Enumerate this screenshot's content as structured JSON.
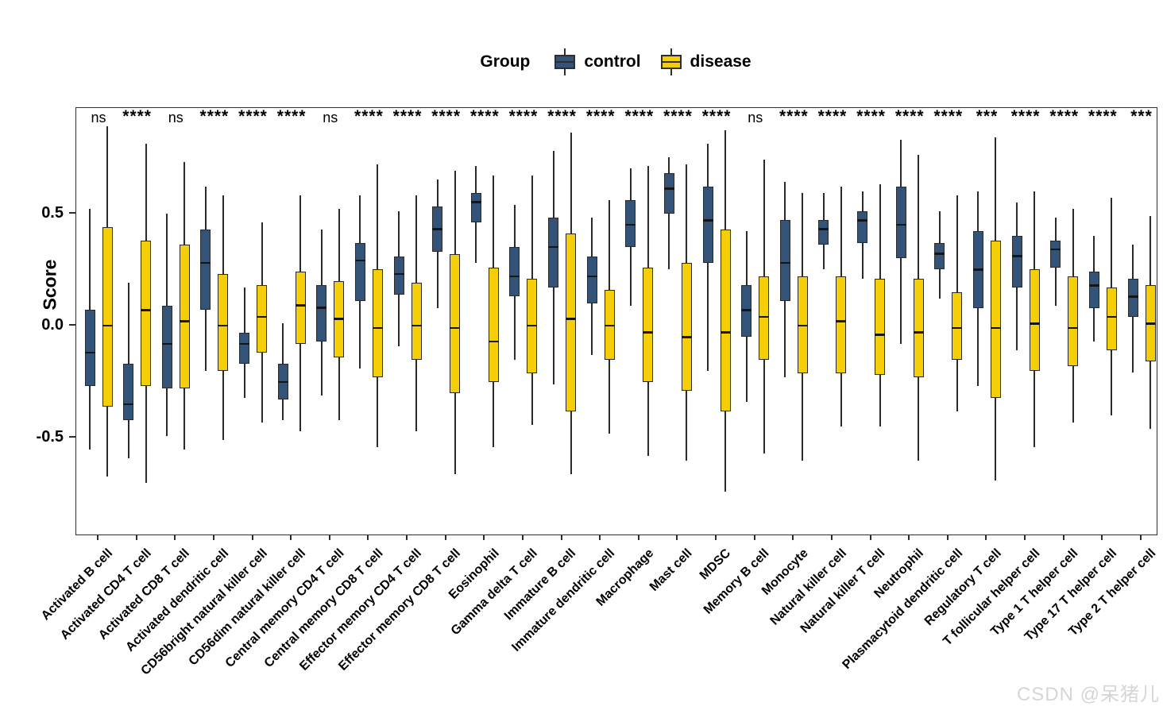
{
  "legend": {
    "title": "Group",
    "items": [
      {
        "label": "control",
        "color": "#345379"
      },
      {
        "label": "disease",
        "color": "#F5CE0A"
      }
    ]
  },
  "watermark": "CSDN @呆猪儿",
  "chart_data": {
    "type": "boxplot",
    "orientation": "vertical",
    "title": "",
    "xlabel": "",
    "ylabel": "Score",
    "ylim": [
      -0.93,
      0.97
    ],
    "yticks": [
      {
        "value": 0.5,
        "label": "0.5"
      },
      {
        "value": 0.0,
        "label": "0.0"
      },
      {
        "value": -0.5,
        "label": "-0.5"
      }
    ],
    "grid": false,
    "legend_position": "top",
    "series": [
      "control",
      "disease"
    ],
    "colors": {
      "control": "#345379",
      "disease": "#F5CE0A",
      "stroke": "#2a2a2a"
    },
    "box_stats_order": [
      "whisker_low",
      "q1",
      "median",
      "q3",
      "whisker_high"
    ],
    "categories": [
      {
        "name": "Activated B cell",
        "sig": "ns",
        "control": [
          -0.55,
          -0.27,
          -0.12,
          0.07,
          0.52
        ],
        "disease": [
          -0.67,
          -0.36,
          0.0,
          0.44,
          0.89
        ]
      },
      {
        "name": "Activated CD4 T cell",
        "sig": "****",
        "control": [
          -0.59,
          -0.42,
          -0.35,
          -0.17,
          0.19
        ],
        "disease": [
          -0.7,
          -0.27,
          0.07,
          0.38,
          0.81
        ]
      },
      {
        "name": "Activated CD8 T cell",
        "sig": "ns",
        "control": [
          -0.49,
          -0.28,
          -0.08,
          0.09,
          0.5
        ],
        "disease": [
          -0.55,
          -0.28,
          0.02,
          0.36,
          0.73
        ]
      },
      {
        "name": "Activated dendritic cell",
        "sig": "****",
        "control": [
          -0.2,
          0.07,
          0.28,
          0.43,
          0.62
        ],
        "disease": [
          -0.51,
          -0.2,
          0.0,
          0.23,
          0.58
        ]
      },
      {
        "name": "CD56bright natural killer cell",
        "sig": "****",
        "control": [
          -0.32,
          -0.17,
          -0.08,
          -0.03,
          0.17
        ],
        "disease": [
          -0.43,
          -0.12,
          0.04,
          0.18,
          0.46
        ]
      },
      {
        "name": "CD56dim natural killer cell",
        "sig": "****",
        "control": [
          -0.42,
          -0.33,
          -0.25,
          -0.17,
          0.01
        ],
        "disease": [
          -0.47,
          -0.08,
          0.09,
          0.24,
          0.58
        ]
      },
      {
        "name": "Central memory CD4 T cell",
        "sig": "ns",
        "control": [
          -0.31,
          -0.07,
          0.08,
          0.18,
          0.43
        ],
        "disease": [
          -0.42,
          -0.14,
          0.03,
          0.2,
          0.52
        ]
      },
      {
        "name": "Central memory CD8 T cell",
        "sig": "****",
        "control": [
          -0.19,
          0.11,
          0.29,
          0.37,
          0.58
        ],
        "disease": [
          -0.54,
          -0.23,
          -0.01,
          0.25,
          0.72
        ]
      },
      {
        "name": "Effector memory CD4 T cell",
        "sig": "****",
        "control": [
          -0.09,
          0.14,
          0.23,
          0.31,
          0.51
        ],
        "disease": [
          -0.47,
          -0.15,
          0.0,
          0.19,
          0.58
        ]
      },
      {
        "name": "Effector memory CD8 T cell",
        "sig": "****",
        "control": [
          0.08,
          0.33,
          0.43,
          0.53,
          0.65
        ],
        "disease": [
          -0.66,
          -0.3,
          -0.01,
          0.32,
          0.69
        ]
      },
      {
        "name": "Eosinophil",
        "sig": "****",
        "control": [
          0.28,
          0.46,
          0.55,
          0.59,
          0.71
        ],
        "disease": [
          -0.54,
          -0.25,
          -0.07,
          0.26,
          0.67
        ]
      },
      {
        "name": "Gamma delta T cell",
        "sig": "****",
        "control": [
          -0.15,
          0.13,
          0.22,
          0.35,
          0.54
        ],
        "disease": [
          -0.44,
          -0.21,
          0.0,
          0.21,
          0.67
        ]
      },
      {
        "name": "Immature  B cell",
        "sig": "****",
        "control": [
          -0.26,
          0.17,
          0.35,
          0.48,
          0.78
        ],
        "disease": [
          -0.66,
          -0.38,
          0.03,
          0.41,
          0.86
        ]
      },
      {
        "name": "Immature dendritic cell",
        "sig": "****",
        "control": [
          -0.13,
          0.1,
          0.22,
          0.31,
          0.48
        ],
        "disease": [
          -0.48,
          -0.15,
          0.0,
          0.16,
          0.56
        ]
      },
      {
        "name": "Macrophage",
        "sig": "****",
        "control": [
          0.09,
          0.35,
          0.45,
          0.56,
          0.7
        ],
        "disease": [
          -0.58,
          -0.25,
          -0.03,
          0.26,
          0.71
        ]
      },
      {
        "name": "Mast cell",
        "sig": "****",
        "control": [
          0.25,
          0.5,
          0.61,
          0.68,
          0.75
        ],
        "disease": [
          -0.6,
          -0.29,
          -0.05,
          0.28,
          0.72
        ]
      },
      {
        "name": "MDSC",
        "sig": "****",
        "control": [
          -0.2,
          0.28,
          0.47,
          0.62,
          0.81
        ],
        "disease": [
          -0.74,
          -0.38,
          -0.03,
          0.43,
          0.87
        ]
      },
      {
        "name": "Memory B cell",
        "sig": "ns",
        "control": [
          -0.34,
          -0.05,
          0.07,
          0.18,
          0.42
        ],
        "disease": [
          -0.57,
          -0.15,
          0.04,
          0.22,
          0.74
        ]
      },
      {
        "name": "Monocyte",
        "sig": "****",
        "control": [
          -0.23,
          0.11,
          0.28,
          0.47,
          0.64
        ],
        "disease": [
          -0.6,
          -0.21,
          0.0,
          0.22,
          0.59
        ]
      },
      {
        "name": "Natural killer cell",
        "sig": "****",
        "control": [
          0.25,
          0.36,
          0.43,
          0.47,
          0.59
        ],
        "disease": [
          -0.45,
          -0.21,
          0.02,
          0.22,
          0.62
        ]
      },
      {
        "name": "Natural killer T cell",
        "sig": "****",
        "control": [
          0.21,
          0.37,
          0.47,
          0.51,
          0.6
        ],
        "disease": [
          -0.45,
          -0.22,
          -0.04,
          0.21,
          0.63
        ]
      },
      {
        "name": "Neutrophil",
        "sig": "****",
        "control": [
          -0.08,
          0.3,
          0.45,
          0.62,
          0.83
        ],
        "disease": [
          -0.6,
          -0.23,
          -0.03,
          0.21,
          0.76
        ]
      },
      {
        "name": "Plasmacytoid dendritic cell",
        "sig": "****",
        "control": [
          0.12,
          0.25,
          0.32,
          0.37,
          0.51
        ],
        "disease": [
          -0.38,
          -0.15,
          -0.01,
          0.15,
          0.58
        ]
      },
      {
        "name": "Regulatory T cell",
        "sig": "***",
        "control": [
          -0.27,
          0.08,
          0.25,
          0.42,
          0.6
        ],
        "disease": [
          -0.69,
          -0.32,
          -0.01,
          0.38,
          0.84
        ]
      },
      {
        "name": "T follicular helper cell",
        "sig": "****",
        "control": [
          -0.11,
          0.17,
          0.31,
          0.4,
          0.55
        ],
        "disease": [
          -0.54,
          -0.2,
          0.01,
          0.25,
          0.6
        ]
      },
      {
        "name": "Type 1 T helper cell",
        "sig": "****",
        "control": [
          0.09,
          0.26,
          0.34,
          0.38,
          0.48
        ],
        "disease": [
          -0.43,
          -0.18,
          -0.01,
          0.22,
          0.52
        ]
      },
      {
        "name": "Type 17 T helper cell",
        "sig": "****",
        "control": [
          -0.07,
          0.08,
          0.18,
          0.24,
          0.4
        ],
        "disease": [
          -0.4,
          -0.11,
          0.04,
          0.17,
          0.57
        ]
      },
      {
        "name": "Type 2 T helper cell",
        "sig": "***",
        "control": [
          -0.21,
          0.04,
          0.13,
          0.21,
          0.36
        ],
        "disease": [
          -0.46,
          -0.16,
          0.01,
          0.18,
          0.49
        ]
      }
    ]
  }
}
